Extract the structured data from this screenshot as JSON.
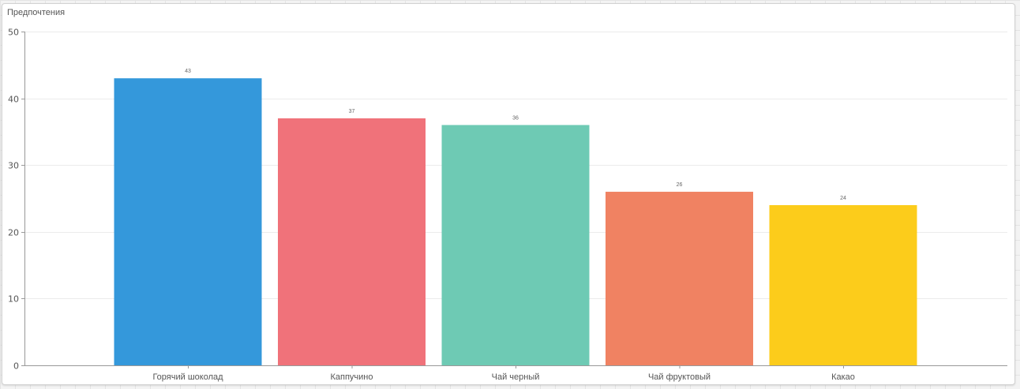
{
  "panel": {
    "title": "Предпочтения"
  },
  "chart_data": {
    "type": "bar",
    "title": "Предпочтения",
    "xlabel": "",
    "ylabel": "",
    "categories": [
      "Горячий шоколад",
      "Каппучино",
      "Чай черный",
      "Чай фруктовый",
      "Какао"
    ],
    "values": [
      43,
      37,
      36,
      26,
      24
    ],
    "colors": [
      "#3498db",
      "#f0727a",
      "#6ecab4",
      "#f08262",
      "#fccc1b"
    ],
    "ylim": [
      0,
      50
    ],
    "yticks": [
      0,
      10,
      20,
      30,
      40,
      50
    ],
    "grid": true,
    "legend": "none"
  }
}
